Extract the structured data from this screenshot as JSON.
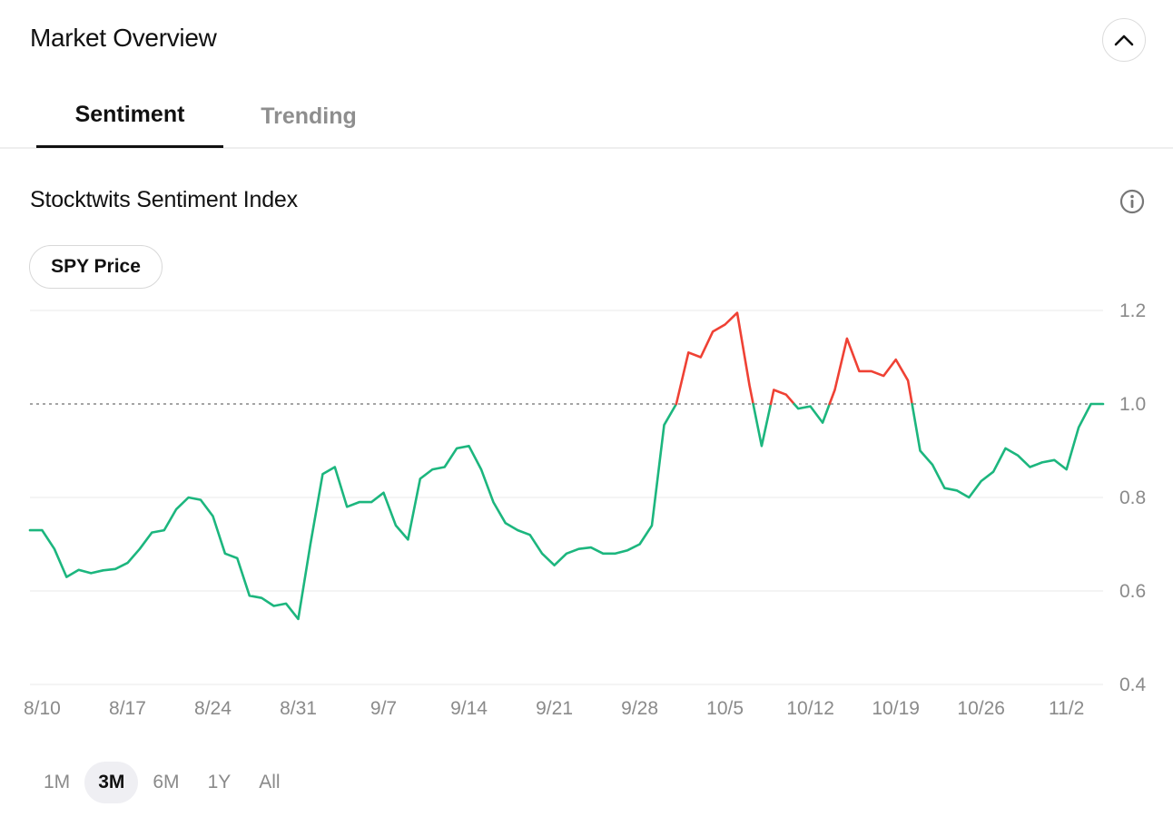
{
  "header": {
    "title": "Market Overview",
    "collapse_icon": "chevron-up-icon"
  },
  "tabs": [
    {
      "label": "Sentiment",
      "active": true
    },
    {
      "label": "Trending",
      "active": false
    }
  ],
  "section": {
    "title": "Stocktwits Sentiment Index",
    "info_icon": "info-icon"
  },
  "chip": {
    "label": "SPY Price"
  },
  "ranges": [
    {
      "label": "1M",
      "active": false
    },
    {
      "label": "3M",
      "active": true
    },
    {
      "label": "6M",
      "active": false
    },
    {
      "label": "1Y",
      "active": false
    },
    {
      "label": "All",
      "active": false
    }
  ],
  "colors": {
    "above": "#ef4134",
    "below": "#1cb67e",
    "grid": "#ededed",
    "baseline": "#6f6f6f"
  },
  "chart_data": {
    "type": "line",
    "title": "",
    "xlabel": "",
    "ylabel": "",
    "ylim": [
      0.4,
      1.2
    ],
    "yticks": [
      0.4,
      0.6,
      0.8,
      1.0,
      1.2
    ],
    "ytick_labels": [
      "0.4",
      "0.6",
      "0.8",
      "1.0",
      "1.2"
    ],
    "xtick_labels": [
      "8/10",
      "8/17",
      "8/24",
      "8/31",
      "9/7",
      "9/14",
      "9/21",
      "9/28",
      "10/5",
      "10/12",
      "10/19",
      "10/26",
      "11/2"
    ],
    "reference_line": 1.0,
    "grid": true,
    "series": [
      {
        "values": [
          0.73,
          0.73,
          0.69,
          0.63,
          0.645,
          0.638,
          0.644,
          0.647,
          0.66,
          0.69,
          0.725,
          0.73,
          0.775,
          0.8,
          0.795,
          0.76,
          0.68,
          0.67,
          0.59,
          0.585,
          0.568,
          0.573,
          0.54,
          0.7,
          0.85,
          0.865,
          0.78,
          0.79,
          0.79,
          0.81,
          0.74,
          0.71,
          0.84,
          0.86,
          0.865,
          0.905,
          0.91,
          0.86,
          0.79,
          0.745,
          0.73,
          0.72,
          0.68,
          0.655,
          0.68,
          0.69,
          0.693,
          0.68,
          0.68,
          0.687,
          0.7,
          0.74,
          0.955,
          1.0,
          1.11,
          1.1,
          1.155,
          1.17,
          1.195,
          1.04,
          0.91,
          1.03,
          1.02,
          0.99,
          0.995,
          0.96,
          1.03,
          1.14,
          1.07,
          1.07,
          1.06,
          1.095,
          1.05,
          0.9,
          0.87,
          0.82,
          0.815,
          0.8,
          0.835,
          0.855,
          0.905,
          0.89,
          0.865,
          0.875,
          0.88,
          0.86,
          0.95,
          1.0,
          1.0
        ]
      }
    ]
  }
}
